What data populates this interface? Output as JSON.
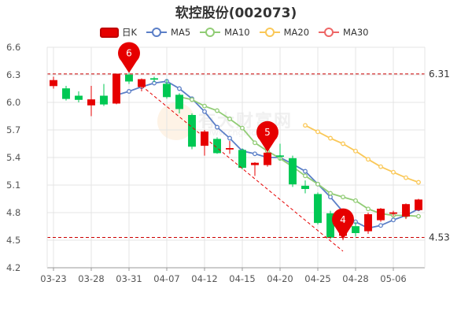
{
  "title": "软控股份(002073)",
  "legend": {
    "k_icon_text": "日",
    "k_label": "K",
    "items": [
      {
        "label": "MA5",
        "color": "#5b7fc7"
      },
      {
        "label": "MA10",
        "color": "#91cc75"
      },
      {
        "label": "MA20",
        "color": "#fac858"
      },
      {
        "label": "MA30",
        "color": "#ee6666"
      }
    ]
  },
  "watermark": {
    "text": "有大财富网",
    "url": "www.cngold.com"
  },
  "colors": {
    "up": "#e60000",
    "down": "#00c853",
    "ref_line": "#cc0000",
    "grid": "#e4e4e4",
    "trend_line": "#e60000",
    "marker": "#e60000"
  },
  "chart_data": {
    "type": "candlestick",
    "title": "软控股份(002073)",
    "ylim": [
      4.2,
      6.6
    ],
    "y_ticks": [
      6.6,
      6.3,
      6.0,
      5.7,
      5.4,
      5.1,
      4.8,
      4.5,
      4.2
    ],
    "x_tick_labels": [
      {
        "label": "03-23",
        "index": 0
      },
      {
        "label": "03-28",
        "index": 3
      },
      {
        "label": "03-31",
        "index": 6
      },
      {
        "label": "04-07",
        "index": 9
      },
      {
        "label": "04-12",
        "index": 12
      },
      {
        "label": "04-15",
        "index": 15
      },
      {
        "label": "04-20",
        "index": 18
      },
      {
        "label": "04-25",
        "index": 21
      },
      {
        "label": "04-28",
        "index": 24
      },
      {
        "label": "05-06",
        "index": 27
      }
    ],
    "candles": [
      {
        "open": 6.18,
        "close": 6.24,
        "high": 6.28,
        "low": 6.15
      },
      {
        "open": 6.15,
        "close": 6.04,
        "high": 6.18,
        "low": 6.02
      },
      {
        "open": 6.07,
        "close": 6.03,
        "high": 6.12,
        "low": 6.0
      },
      {
        "open": 5.97,
        "close": 6.03,
        "high": 6.18,
        "low": 5.85
      },
      {
        "open": 6.07,
        "close": 5.98,
        "high": 6.2,
        "low": 5.96
      },
      {
        "open": 5.99,
        "close": 6.31,
        "high": 6.31,
        "low": 5.98
      },
      {
        "open": 6.3,
        "close": 6.23,
        "high": 6.32,
        "low": 6.2
      },
      {
        "open": 6.17,
        "close": 6.25,
        "high": 6.26,
        "low": 6.12
      },
      {
        "open": 6.26,
        "close": 6.25,
        "high": 6.28,
        "low": 6.22
      },
      {
        "open": 6.2,
        "close": 6.06,
        "high": 6.25,
        "low": 6.04
      },
      {
        "open": 6.08,
        "close": 5.93,
        "high": 6.1,
        "low": 5.88
      },
      {
        "open": 5.86,
        "close": 5.52,
        "high": 5.88,
        "low": 5.49
      },
      {
        "open": 5.53,
        "close": 5.68,
        "high": 5.7,
        "low": 5.42
      },
      {
        "open": 5.6,
        "close": 5.45,
        "high": 5.62,
        "low": 5.44
      },
      {
        "open": 5.49,
        "close": 5.5,
        "high": 5.58,
        "low": 5.44
      },
      {
        "open": 5.48,
        "close": 5.29,
        "high": 5.5,
        "low": 5.27
      },
      {
        "open": 5.32,
        "close": 5.34,
        "high": 5.35,
        "low": 5.2
      },
      {
        "open": 5.32,
        "close": 5.45,
        "high": 5.47,
        "low": 5.3
      },
      {
        "open": 5.42,
        "close": 5.41,
        "high": 5.55,
        "low": 5.37
      },
      {
        "open": 5.39,
        "close": 5.11,
        "high": 5.42,
        "low": 5.08
      },
      {
        "open": 5.09,
        "close": 5.06,
        "high": 5.15,
        "low": 5.01
      },
      {
        "open": 5.0,
        "close": 4.69,
        "high": 5.02,
        "low": 4.67
      },
      {
        "open": 4.79,
        "close": 4.53,
        "high": 4.82,
        "low": 4.51
      },
      {
        "open": 4.55,
        "close": 4.7,
        "high": 4.71,
        "low": 4.5
      },
      {
        "open": 4.65,
        "close": 4.58,
        "high": 4.7,
        "low": 4.54
      },
      {
        "open": 4.6,
        "close": 4.78,
        "high": 4.8,
        "low": 4.57
      },
      {
        "open": 4.72,
        "close": 4.84,
        "high": 4.85,
        "low": 4.7
      },
      {
        "open": 4.8,
        "close": 4.8,
        "high": 4.82,
        "low": 4.76
      },
      {
        "open": 4.76,
        "close": 4.89,
        "high": 4.9,
        "low": 4.73
      },
      {
        "open": 4.83,
        "close": 4.94,
        "high": 4.95,
        "low": 4.82
      }
    ],
    "series": [
      {
        "name": "MA5",
        "start": 5,
        "values": [
          6.08,
          6.12,
          6.17,
          6.21,
          6.23,
          6.15,
          6.04,
          5.9,
          5.73,
          5.61,
          5.47,
          5.44,
          5.4,
          5.4,
          5.33,
          5.25,
          5.11,
          4.97,
          4.81,
          4.7,
          4.63,
          4.66,
          4.72,
          4.77,
          4.84
        ]
      },
      {
        "name": "MA10",
        "start": 10,
        "values": [
          6.06,
          6.03,
          5.96,
          5.91,
          5.82,
          5.72,
          5.56,
          5.47,
          5.39,
          5.3,
          5.2,
          5.11,
          5.01,
          4.97,
          4.93,
          4.84,
          4.79,
          4.77,
          4.77,
          4.76
        ]
      },
      {
        "name": "MA20",
        "start": 20,
        "values": [
          5.75,
          5.68,
          5.61,
          5.55,
          5.47,
          5.38,
          5.3,
          5.24,
          5.18,
          5.13
        ]
      }
    ],
    "reference_lines": [
      {
        "value": 6.31,
        "label": "6.31"
      },
      {
        "value": 4.53,
        "label": "4.53"
      }
    ],
    "trend_line": {
      "from": {
        "index": 7,
        "value": 6.18
      },
      "to": {
        "index": 23,
        "value": 4.38
      }
    },
    "markers": [
      {
        "label": "6",
        "index": 6,
        "value": 6.32
      },
      {
        "label": "5",
        "index": 17,
        "value": 5.46
      },
      {
        "label": "4",
        "index": 23,
        "value": 4.51
      }
    ]
  }
}
